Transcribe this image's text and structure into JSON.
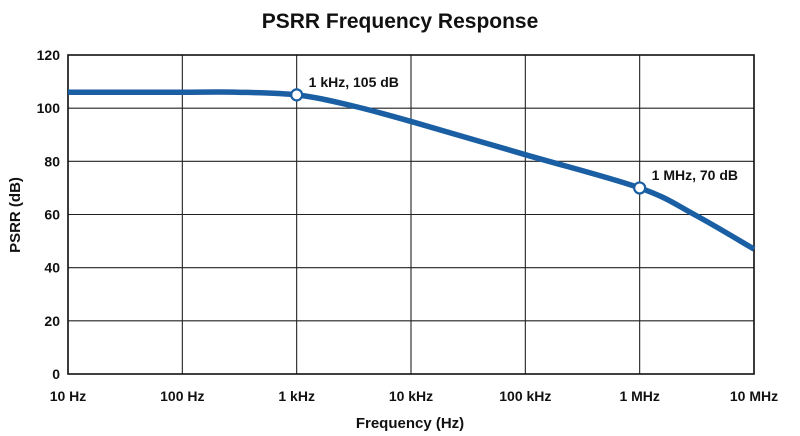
{
  "chart_data": {
    "type": "line",
    "title": "PSRR Frequency Response",
    "xlabel": "Frequency (Hz)",
    "ylabel": "PSRR (dB)",
    "x_scale": "log",
    "x_tick_values": [
      10,
      100,
      1000,
      10000,
      100000,
      1000000,
      10000000
    ],
    "x_tick_labels": [
      "10 Hz",
      "100 Hz",
      "1 kHz",
      "10 kHz",
      "100 kHz",
      "1 MHz",
      "10 MHz"
    ],
    "y_tick_values": [
      0,
      20,
      40,
      60,
      80,
      100,
      120
    ],
    "ylim": [
      0,
      120
    ],
    "xlim": [
      10,
      10000000
    ],
    "grid": true,
    "line_color": "#1a5fa3",
    "series": [
      {
        "x": [
          10,
          30,
          100,
          300,
          1000,
          3000,
          10000,
          100000,
          1000000,
          3000000,
          10000000
        ],
        "y": [
          106,
          106,
          106,
          106,
          105,
          101,
          95,
          82.5,
          70,
          60,
          47
        ]
      }
    ],
    "annotations": [
      {
        "x": 1000,
        "y": 105,
        "label": "1 kHz, 105 dB"
      },
      {
        "x": 1000000,
        "y": 70,
        "label": "1 MHz, 70 dB"
      }
    ]
  }
}
